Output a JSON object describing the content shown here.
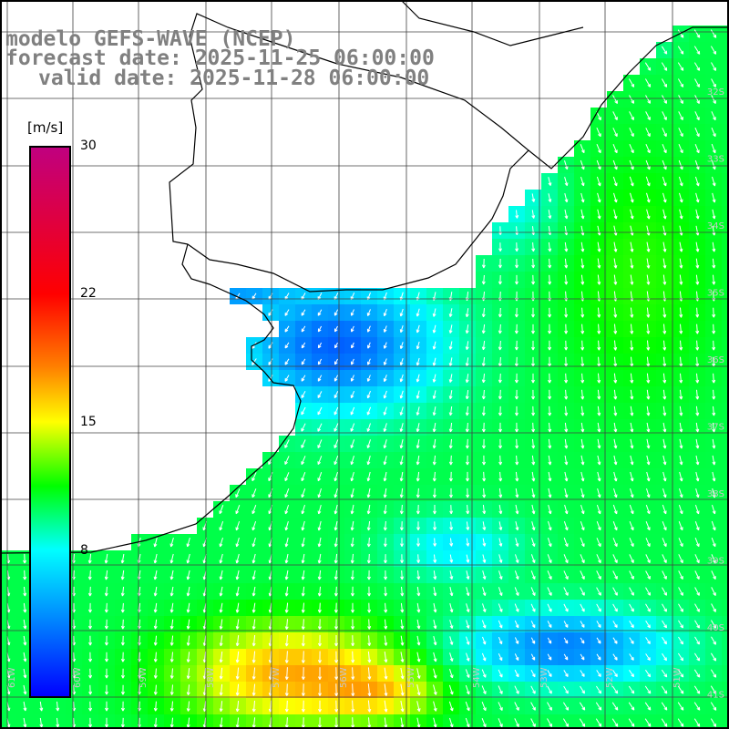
{
  "title": {
    "line1": "modelo GEFS-WAVE (NCEP)",
    "line2": "forecast date: 2025-11-25 06:00:00",
    "line3": "valid date: 2025-11-28 06:00:00"
  },
  "colorbar": {
    "unit": "[m/s]",
    "ticks": [
      {
        "label": "30",
        "value": 30
      },
      {
        "label": "22",
        "value": 22
      },
      {
        "label": "15",
        "value": 15
      },
      {
        "label": "8",
        "value": 8
      }
    ],
    "range": [
      0,
      30
    ],
    "stops": [
      {
        "value": 0,
        "color": "#0000ff"
      },
      {
        "value": 4,
        "color": "#0080ff"
      },
      {
        "value": 8,
        "color": "#00ffff"
      },
      {
        "value": 11.5,
        "color": "#00ff00"
      },
      {
        "value": 15,
        "color": "#ffff00"
      },
      {
        "value": 18,
        "color": "#ff8000"
      },
      {
        "value": 22,
        "color": "#ff0000"
      },
      {
        "value": 30,
        "color": "#c0007f"
      }
    ]
  },
  "map": {
    "lat_labels": [
      "32S",
      "33S",
      "34S",
      "35S",
      "36S",
      "37S",
      "38S",
      "39S",
      "40S",
      "41S"
    ],
    "lon_labels": [
      "61W",
      "60W",
      "59W",
      "58W",
      "57W",
      "56W",
      "55W",
      "54W",
      "53W",
      "52W",
      "51W"
    ],
    "ocean_color": "#ffffff",
    "land_color": "#ffffff",
    "grid_color": "#000000",
    "coast_color": "#000000",
    "arrow_color": "#ffffff"
  }
}
